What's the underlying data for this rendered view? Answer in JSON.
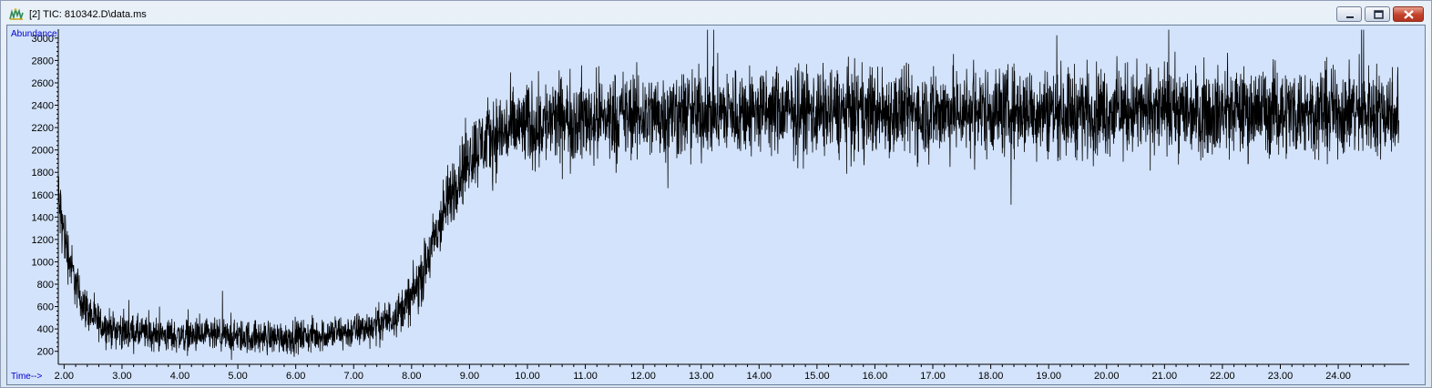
{
  "window": {
    "title": "[2] TIC: 810342.D\\data.ms",
    "controls": [
      "minimize-icon",
      "restore-icon",
      "close-icon"
    ],
    "colors": {
      "plot_background": "#d3e3fb",
      "trace": "#000000",
      "axis_label": "#0000cc"
    }
  },
  "chart_data": {
    "type": "line",
    "ylabel": "Abundance",
    "xlabel": "Time-->",
    "xlim": [
      1.9,
      25.1
    ],
    "ylim": [
      100,
      3080
    ],
    "x_ticks": [
      2,
      3,
      4,
      5,
      6,
      7,
      8,
      9,
      10,
      11,
      12,
      13,
      14,
      15,
      16,
      17,
      18,
      19,
      20,
      21,
      22,
      23,
      24
    ],
    "x_tick_labels": [
      "2.00",
      "3.00",
      "4.00",
      "5.00",
      "6.00",
      "7.00",
      "8.00",
      "9.00",
      "10.00",
      "11.00",
      "12.00",
      "13.00",
      "14.00",
      "15.00",
      "16.00",
      "17.00",
      "18.00",
      "19.00",
      "20.00",
      "21.00",
      "22.00",
      "23.00",
      "24.00"
    ],
    "y_ticks": [
      200,
      400,
      600,
      800,
      1000,
      1200,
      1400,
      1600,
      1800,
      2000,
      2200,
      2400,
      2600,
      2800,
      3000
    ],
    "y_tick_labels": [
      "200",
      "400",
      "600",
      "800",
      "1000",
      "1200",
      "1400",
      "1600",
      "1800",
      "2000",
      "2200",
      "2400",
      "2600",
      "2800",
      "3000"
    ],
    "grid": false,
    "series": [
      {
        "color": "#000000",
        "x": [
          1.9,
          2.0,
          2.1,
          2.2,
          2.3,
          2.5,
          2.7,
          3.0,
          3.5,
          4.0,
          4.5,
          5.0,
          5.5,
          6.0,
          6.5,
          7.0,
          7.3,
          7.6,
          7.8,
          8.0,
          8.2,
          8.4,
          8.6,
          8.8,
          9.0,
          9.2,
          9.5,
          10.0,
          10.5,
          11.0,
          12.0,
          13.0,
          14.0,
          15.0,
          16.0,
          17.0,
          18.0,
          19.0,
          20.0,
          21.0,
          22.0,
          23.0,
          24.0,
          25.0
        ],
        "y": [
          1550,
          1250,
          1000,
          800,
          650,
          500,
          420,
          380,
          350,
          340,
          335,
          330,
          325,
          330,
          350,
          380,
          420,
          480,
          560,
          680,
          900,
          1200,
          1500,
          1750,
          1950,
          2050,
          2150,
          2220,
          2260,
          2280,
          2310,
          2330,
          2340,
          2340,
          2340,
          2340,
          2350,
          2350,
          2350,
          2350,
          2350,
          2350,
          2350,
          2350
        ],
        "noise_amplitude": [
          200,
          180,
          150,
          130,
          120,
          110,
          100,
          100,
          95,
          95,
          95,
          95,
          95,
          95,
          95,
          100,
          100,
          110,
          120,
          140,
          160,
          180,
          190,
          200,
          210,
          220,
          230,
          240,
          250,
          250,
          250,
          250,
          250,
          250,
          250,
          250,
          250,
          250,
          250,
          250,
          250,
          250,
          250,
          250
        ]
      }
    ]
  }
}
